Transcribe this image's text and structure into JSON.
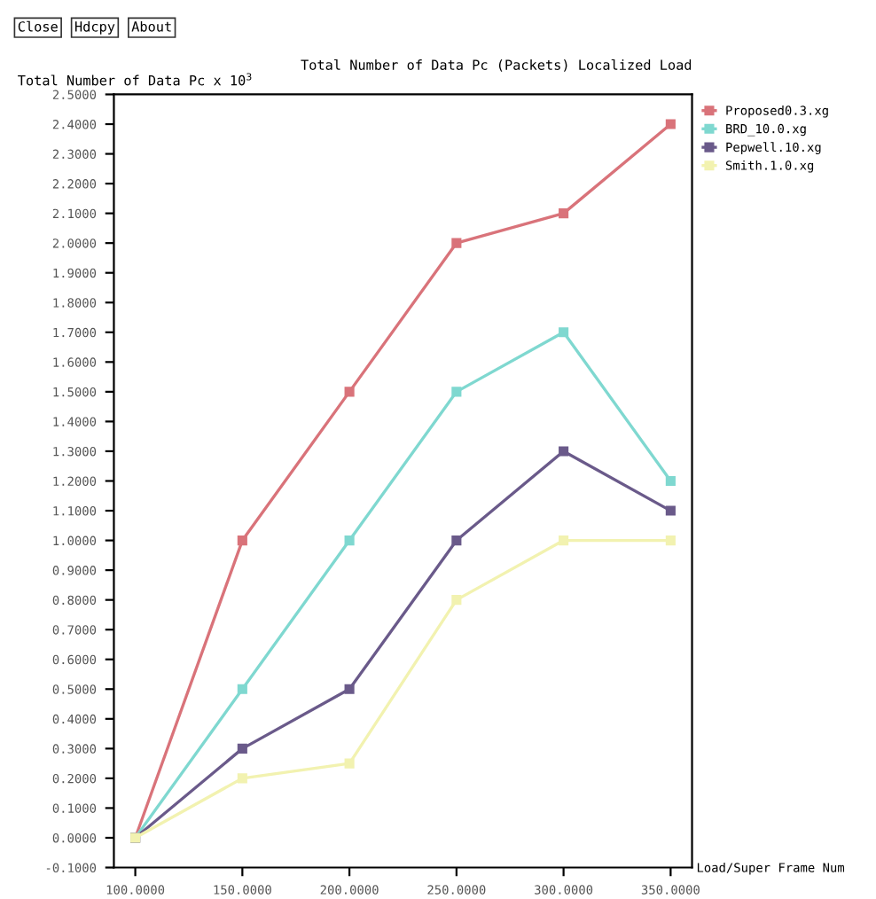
{
  "chart_data": {
    "type": "line",
    "title": "Total Number of Data Pc (Packets) Localized Load",
    "ylabel": "Total Number of Data Pc x 10$^{3}$",
    "xlabel": "Load/Super Frame Num",
    "x": [
      100,
      150,
      200,
      250,
      300,
      350
    ],
    "series": [
      {
        "name": "Proposed0.3.xg",
        "color": "#d9737a",
        "values": [
          0,
          1.0,
          1.5,
          2.0,
          2.1,
          2.4
        ]
      },
      {
        "name": "BRD_10.0.xg",
        "color": "#7fd8d0",
        "values": [
          0,
          0.5,
          1.0,
          1.5,
          1.7,
          1.2
        ]
      },
      {
        "name": "Pepwell.10.xg",
        "color": "#6a5a8a",
        "values": [
          0,
          0.3,
          0.5,
          1.0,
          1.3,
          1.1
        ]
      },
      {
        "name": "Smith.1.0.xg",
        "color": "#f2f2b0",
        "values": [
          0,
          0.2,
          0.25,
          0.8,
          1.0,
          1.0
        ]
      }
    ],
    "xlim": [
      90,
      360
    ],
    "ylim": [
      -0.1,
      2.5
    ],
    "xticks": [
      {
        "value": 100,
        "label": "100.0000"
      },
      {
        "value": 150,
        "label": "150.0000"
      },
      {
        "value": 200,
        "label": "200.0000"
      },
      {
        "value": 250,
        "label": "250.0000"
      },
      {
        "value": 300,
        "label": "300.0000"
      },
      {
        "value": 350,
        "label": "350.0000"
      }
    ],
    "yticks": [
      {
        "value": -0.1,
        "label": "-0.1000"
      },
      {
        "value": 0,
        "label": "0.0000"
      },
      {
        "value": 0.1,
        "label": "0.1000"
      },
      {
        "value": 0.2,
        "label": "0.2000"
      },
      {
        "value": 0.3,
        "label": "0.3000"
      },
      {
        "value": 0.4,
        "label": "0.4000"
      },
      {
        "value": 0.5,
        "label": "0.5000"
      },
      {
        "value": 0.6,
        "label": "0.6000"
      },
      {
        "value": 0.7,
        "label": "0.7000"
      },
      {
        "value": 0.8,
        "label": "0.8000"
      },
      {
        "value": 0.9,
        "label": "0.9000"
      },
      {
        "value": 1.0,
        "label": "1.0000"
      },
      {
        "value": 1.1,
        "label": "1.1000"
      },
      {
        "value": 1.2,
        "label": "1.2000"
      },
      {
        "value": 1.3,
        "label": "1.3000"
      },
      {
        "value": 1.4,
        "label": "1.4000"
      },
      {
        "value": 1.5,
        "label": "1.5000"
      },
      {
        "value": 1.6,
        "label": "1.6000"
      },
      {
        "value": 1.7,
        "label": "1.7000"
      },
      {
        "value": 1.8,
        "label": "1.8000"
      },
      {
        "value": 1.9,
        "label": "1.9000"
      },
      {
        "value": 2.0,
        "label": "2.0000"
      },
      {
        "value": 2.1,
        "label": "2.1000"
      },
      {
        "value": 2.2,
        "label": "2.2000"
      },
      {
        "value": 2.3,
        "label": "2.3000"
      },
      {
        "value": 2.4,
        "label": "2.4000"
      },
      {
        "value": 2.5,
        "label": "2.5000"
      }
    ],
    "annotations": [
      "Close",
      "Hdcpy",
      "About"
    ],
    "marker": "square",
    "grid": false,
    "legend": "top right"
  }
}
